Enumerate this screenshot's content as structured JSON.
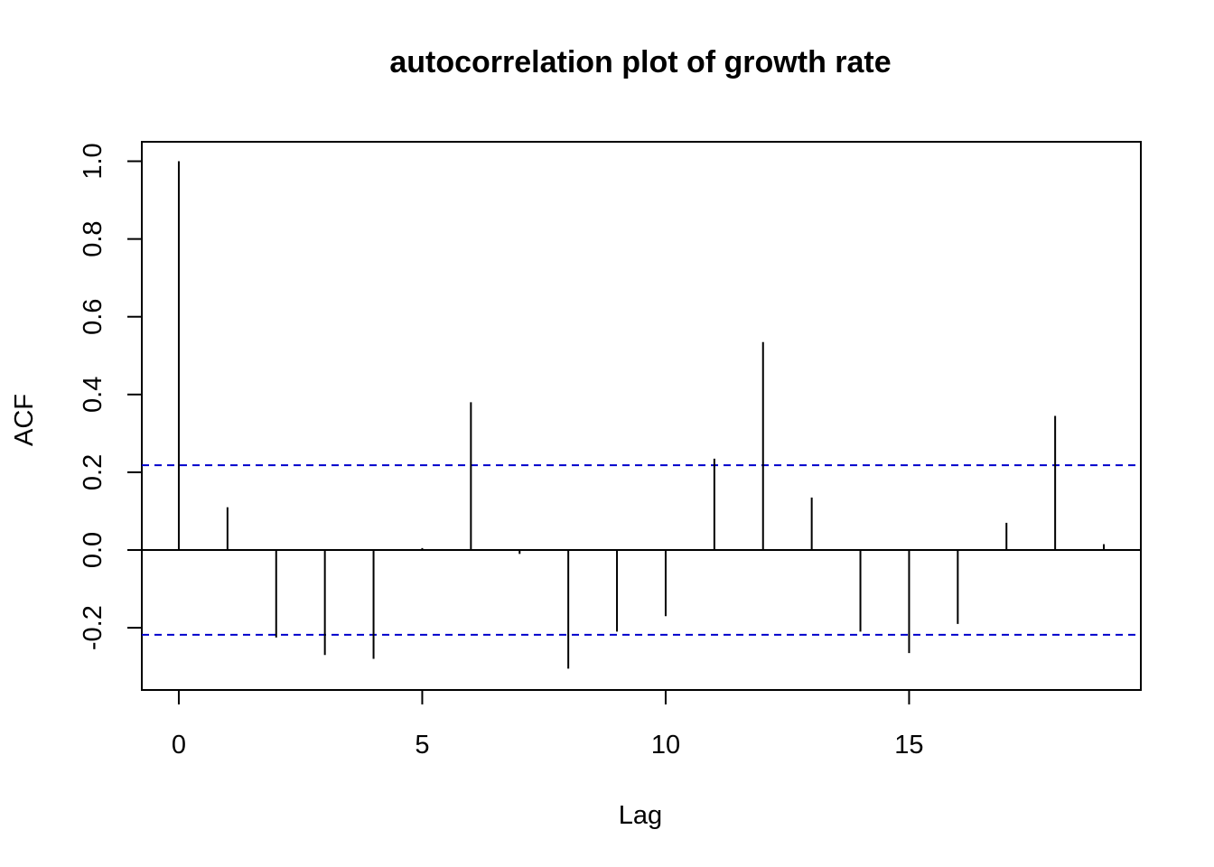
{
  "chart_data": {
    "type": "bar",
    "title": "autocorrelation plot of growth rate",
    "xlabel": "Lag",
    "ylabel": "ACF",
    "xlim": [
      -0.76,
      19.76
    ],
    "ylim": [
      -0.36,
      1.05
    ],
    "x_ticks": [
      0,
      5,
      10,
      15
    ],
    "x_tick_labels": [
      "0",
      "5",
      "10",
      "15"
    ],
    "y_ticks": [
      -0.2,
      0.0,
      0.2,
      0.4,
      0.6,
      0.8,
      1.0
    ],
    "y_tick_labels": [
      "-0.2",
      "0.0",
      "0.2",
      "0.4",
      "0.6",
      "0.8",
      "1.0"
    ],
    "lags": [
      0,
      1,
      2,
      3,
      4,
      5,
      6,
      7,
      8,
      9,
      10,
      11,
      12,
      13,
      14,
      15,
      16,
      17,
      18,
      19
    ],
    "values": [
      1.0,
      0.11,
      -0.225,
      -0.27,
      -0.28,
      0.005,
      0.38,
      -0.01,
      -0.305,
      -0.21,
      -0.17,
      0.235,
      0.535,
      0.135,
      -0.21,
      -0.265,
      -0.19,
      0.07,
      0.345,
      0.015
    ],
    "confidence_band": {
      "upper": 0.218,
      "lower": -0.218,
      "color": "#0000cc",
      "style": "dashed"
    },
    "zero_line": 0,
    "grid": false,
    "box": true
  }
}
